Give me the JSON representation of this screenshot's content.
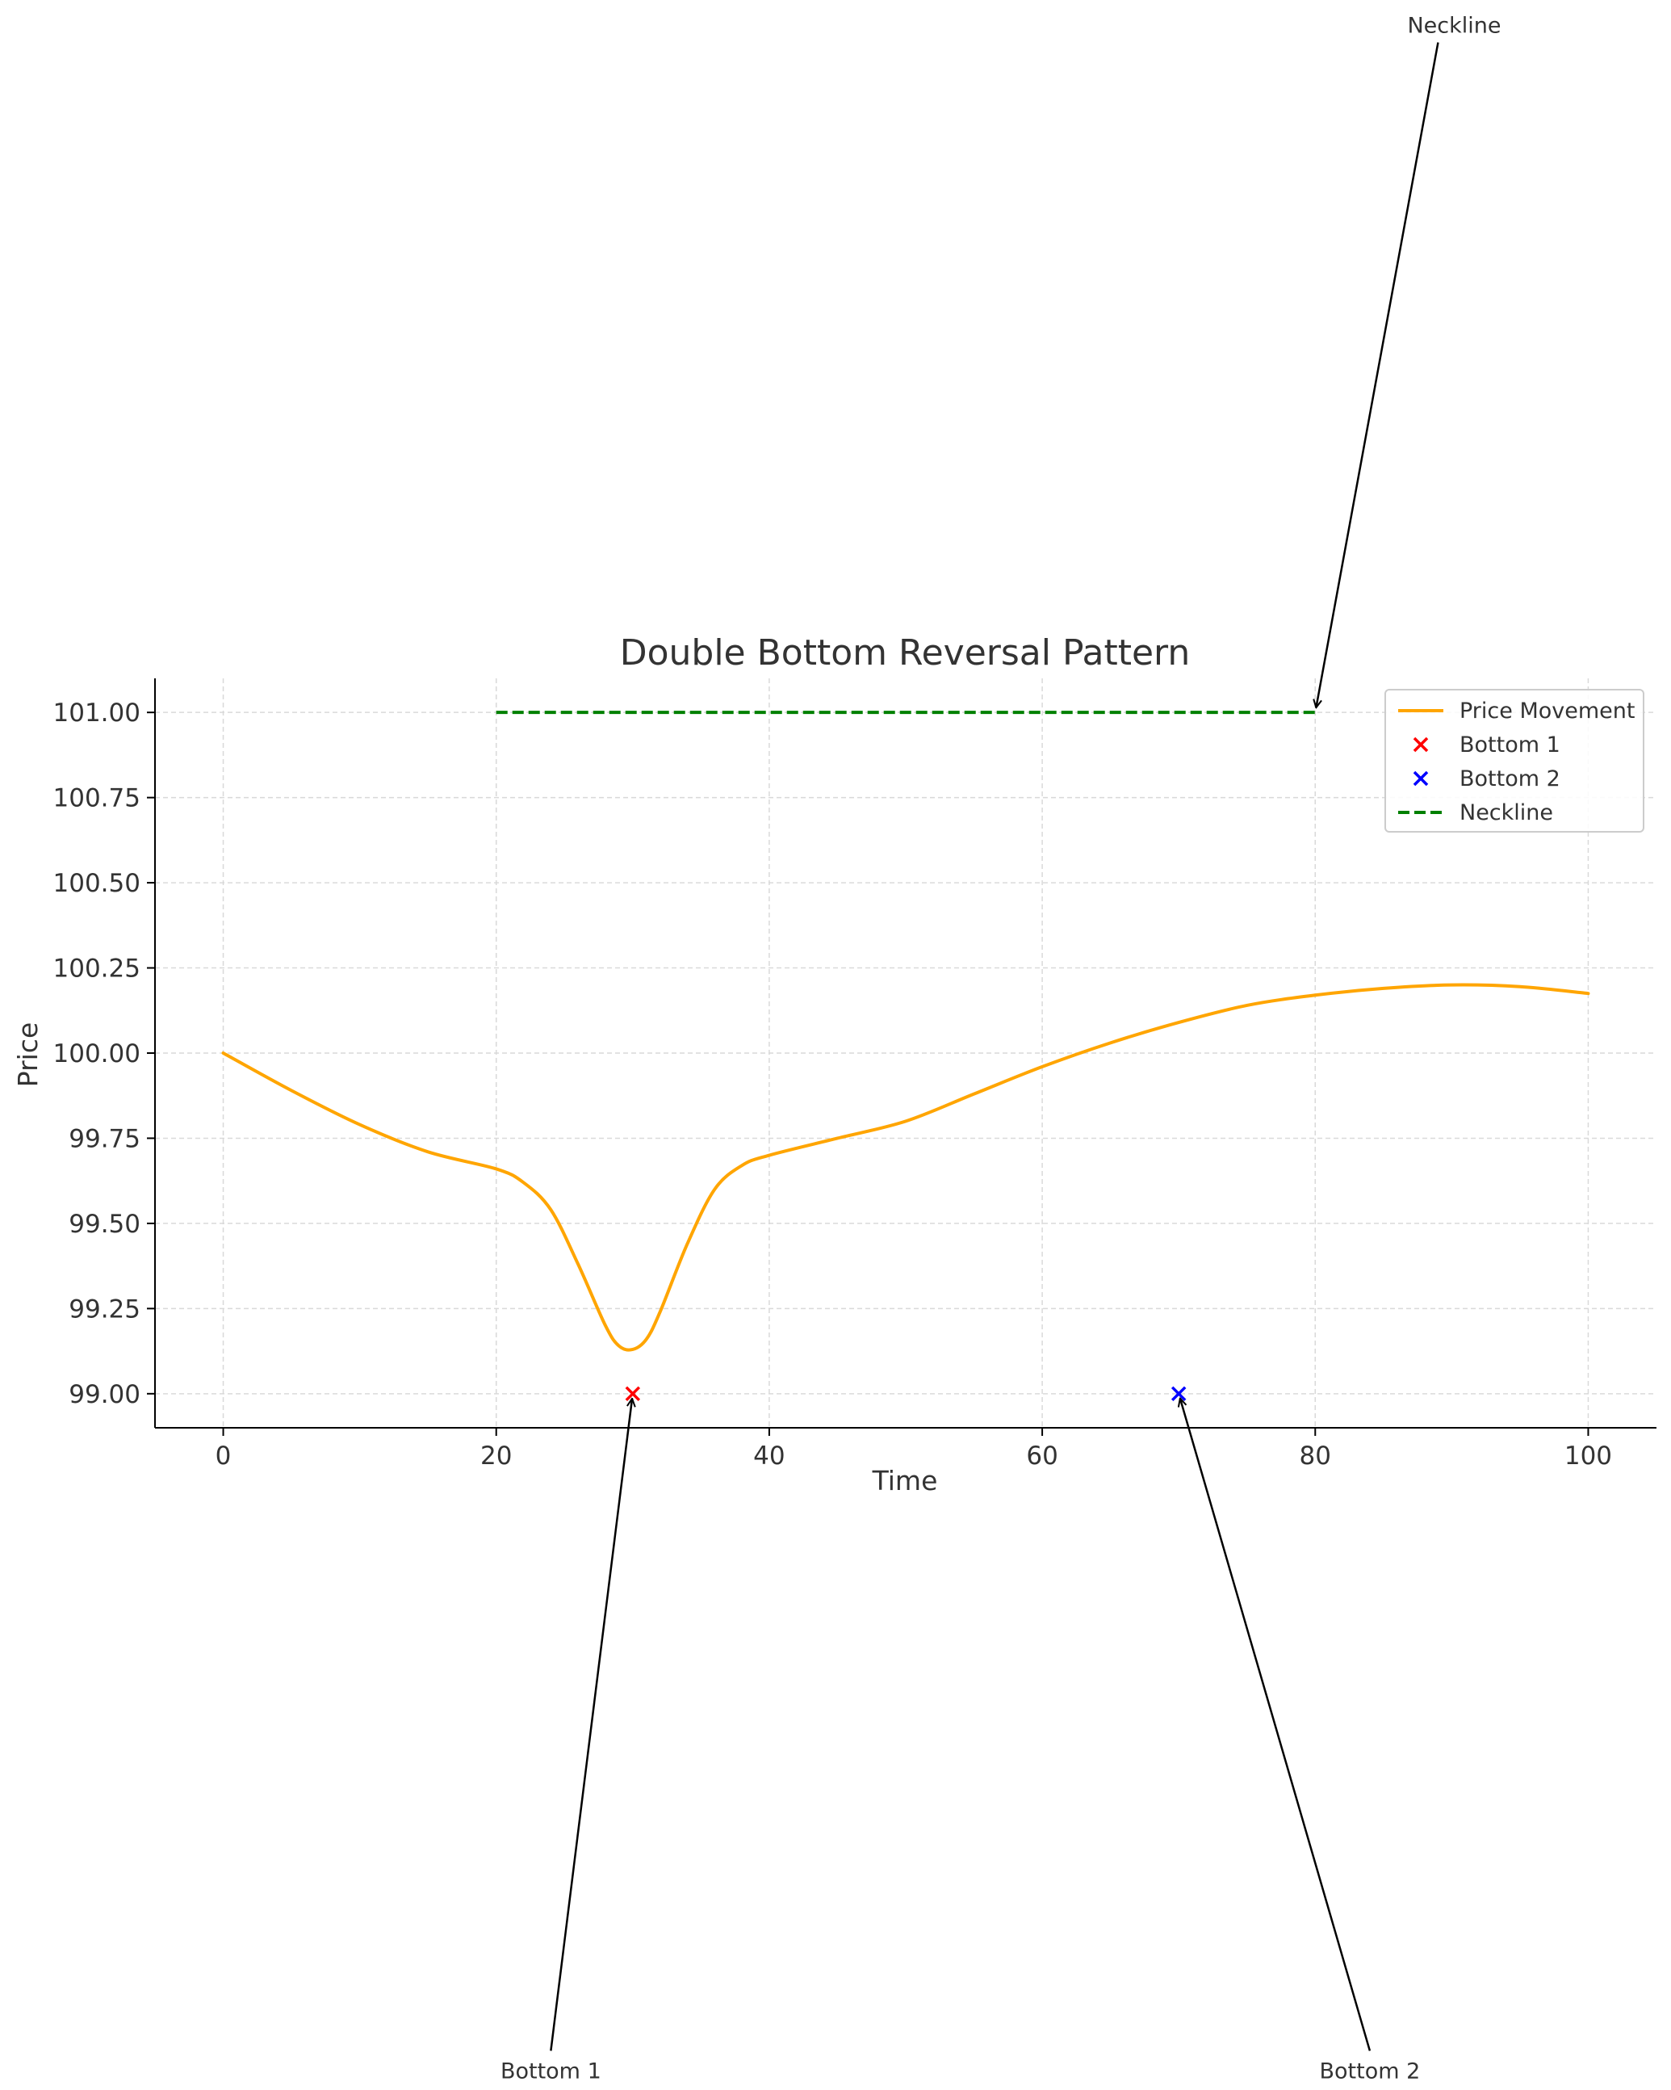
{
  "chart_data": {
    "type": "line",
    "title": "Double Bottom Reversal Pattern",
    "xlabel": "Time",
    "ylabel": "Price",
    "xlim": [
      -5,
      105
    ],
    "ylim": [
      98.9,
      101.1
    ],
    "x_ticks": [
      0,
      20,
      40,
      60,
      80,
      100
    ],
    "y_ticks": [
      99.0,
      99.25,
      99.5,
      99.75,
      100.0,
      100.25,
      100.5,
      100.75,
      101.0
    ],
    "x_tick_labels": [
      "0",
      "20",
      "40",
      "60",
      "80",
      "100"
    ],
    "y_tick_labels": [
      "99.00",
      "99.25",
      "99.50",
      "99.75",
      "100.00",
      "100.25",
      "100.50",
      "100.75",
      "101.00"
    ],
    "grid": true,
    "legend_position": "top-right",
    "series": [
      {
        "name": "Price Movement",
        "kind": "line",
        "color": "#FFA500",
        "x": [
          0,
          5,
          10,
          15,
          20,
          22,
          24,
          26,
          28,
          29,
          30,
          31,
          32,
          34,
          36,
          38,
          40,
          45,
          50,
          55,
          60,
          65,
          70,
          75,
          80,
          85,
          90,
          95,
          100
        ],
        "y": [
          100.0,
          99.89,
          99.79,
          99.71,
          99.66,
          99.62,
          99.54,
          99.38,
          99.2,
          99.14,
          99.13,
          99.16,
          99.24,
          99.44,
          99.6,
          99.67,
          99.7,
          99.75,
          99.8,
          99.88,
          99.96,
          100.03,
          100.09,
          100.14,
          100.17,
          100.19,
          100.2,
          100.195,
          100.175
        ]
      },
      {
        "name": "Bottom 1",
        "kind": "scatter",
        "marker": "x",
        "color": "#FF0000",
        "x": [
          30
        ],
        "y": [
          99.0
        ]
      },
      {
        "name": "Bottom 2",
        "kind": "scatter",
        "marker": "x",
        "color": "#0000FF",
        "x": [
          70
        ],
        "y": [
          99.0
        ]
      },
      {
        "name": "Neckline",
        "kind": "dashed-line",
        "color": "#008000",
        "x": [
          20,
          80
        ],
        "y": [
          101.0,
          101.0
        ]
      }
    ],
    "annotations": [
      {
        "text": "Bottom 1",
        "target": [
          30,
          99.0
        ],
        "text_at": [
          24,
          97.0
        ]
      },
      {
        "text": "Bottom 2",
        "target": [
          70,
          99.0
        ],
        "text_at": [
          84,
          97.0
        ]
      },
      {
        "text": "Neckline",
        "target": [
          80,
          101.0
        ],
        "text_at": [
          89,
          103.0
        ]
      }
    ]
  }
}
